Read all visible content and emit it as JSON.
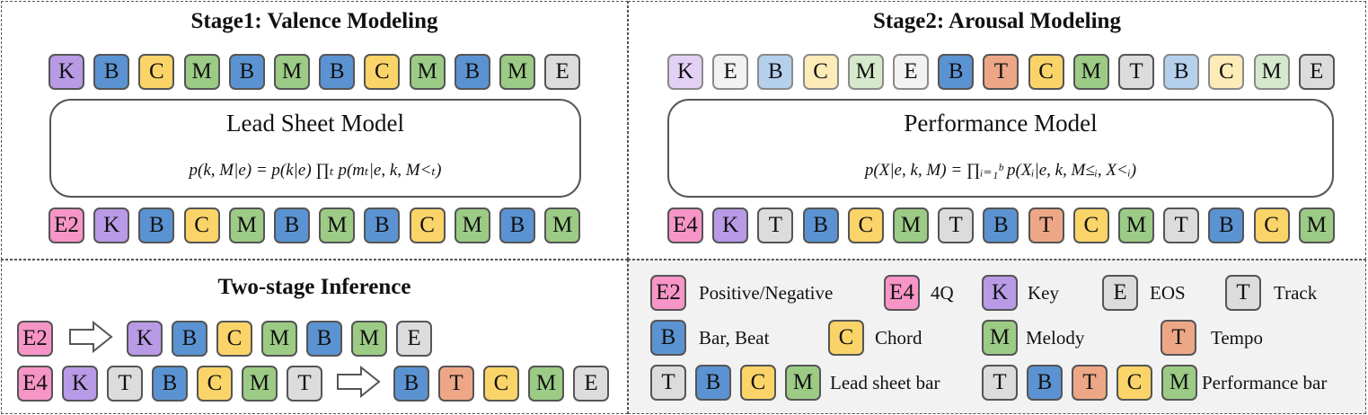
{
  "stage1": {
    "title": "Stage1: Valence Modeling",
    "output_tokens": [
      "K",
      "B",
      "C",
      "M",
      "B",
      "M",
      "B",
      "C",
      "M",
      "B",
      "M",
      "E"
    ],
    "model_title": "Lead Sheet Model",
    "formula": "p(k, M|e) = p(k|e) ∏ₜ p(mₜ|e, k, M<ₜ)",
    "input_tokens": [
      "E2",
      "K",
      "B",
      "C",
      "M",
      "B",
      "M",
      "B",
      "C",
      "M",
      "B",
      "M"
    ]
  },
  "stage2": {
    "title": "Stage2: Arousal Modeling",
    "output_tokens": [
      "K",
      "E",
      "B",
      "C",
      "M",
      "E",
      "B",
      "T",
      "C",
      "M",
      "T",
      "B",
      "C",
      "M",
      "E"
    ],
    "model_title": "Performance Model",
    "formula": "p(X|e, k, M) = ∏ᵢ₌₁ᵇ p(Xᵢ|e, k, M≤ᵢ, X<ᵢ)",
    "input_tokens": [
      "E4",
      "K",
      "T",
      "B",
      "C",
      "M",
      "T",
      "B",
      "T",
      "C",
      "M",
      "T",
      "B",
      "C",
      "M"
    ]
  },
  "inference": {
    "title": "Two-stage Inference",
    "row1_input": [
      "E2"
    ],
    "row1_output": [
      "K",
      "B",
      "C",
      "M",
      "B",
      "M",
      "E"
    ],
    "row2_input": [
      "E4",
      "K",
      "T",
      "B",
      "C",
      "M",
      "T"
    ],
    "row2_output": [
      "B",
      "T",
      "C",
      "M",
      "E"
    ]
  },
  "legend": {
    "e2_label": "Positive/Negative",
    "e4_label": "4Q",
    "k_label": "Key",
    "e_label": "EOS",
    "t_label": "Track",
    "b_label": "Bar, Beat",
    "c_label": "Chord",
    "m_label": "Melody",
    "tempo_label": "Tempo",
    "lead_sheet_bar_label": "Lead sheet bar",
    "performance_bar_label": "Performance bar"
  },
  "colors": {
    "key": "#b89ae6",
    "bar_beat": "#5b93d2",
    "chord": "#fbd469",
    "melody": "#9ccb86",
    "eos_track": "#dcdcdc",
    "tempo": "#eda787",
    "emotion": "#f795c6",
    "legend_bg": "#f2f2f2"
  }
}
